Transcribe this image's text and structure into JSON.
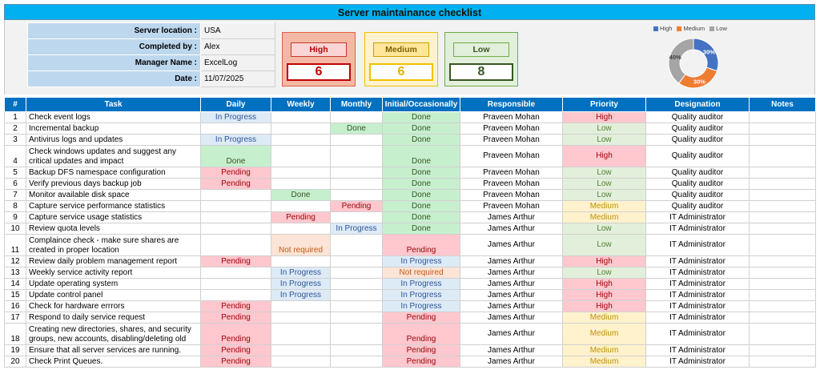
{
  "title": "Server maintainance checklist",
  "info": [
    {
      "label": "Server location :",
      "value": "USA"
    },
    {
      "label": "Completed by :",
      "value": "Alex"
    },
    {
      "label": "Manager Name :",
      "value": "ExcelLog"
    },
    {
      "label": "Date :",
      "value": "11/07/2025"
    }
  ],
  "priority_summary": {
    "high": {
      "label": "High",
      "count": "6"
    },
    "medium": {
      "label": "Medium",
      "count": "6"
    },
    "low": {
      "label": "Low",
      "count": "8"
    }
  },
  "chart_data": {
    "type": "pie",
    "donut": true,
    "categories": [
      "High",
      "Medium",
      "Low"
    ],
    "values": [
      30,
      30,
      40
    ],
    "data_labels": [
      "30%",
      "30%",
      "40%"
    ],
    "colors": [
      "#4472c4",
      "#ed7d31",
      "#a5a5a5"
    ],
    "legend": "top"
  },
  "columns": [
    "#",
    "Task",
    "Daily",
    "Weekly",
    "Monthly",
    "Initial/Occasionally",
    "Responsible",
    "Priority",
    "Designation",
    "Notes"
  ],
  "rows": [
    {
      "num": "1",
      "task": "Check event logs",
      "daily": "In Progress",
      "weekly": "",
      "monthly": "",
      "initial": "Done",
      "responsible": "Praveen Mohan",
      "priority": "High",
      "designation": "Quality auditor",
      "notes": ""
    },
    {
      "num": "2",
      "task": "Incremental backup",
      "daily": "",
      "weekly": "",
      "monthly": "Done",
      "initial": "Done",
      "responsible": "Praveen Mohan",
      "priority": "Low",
      "designation": "Quality auditor",
      "notes": ""
    },
    {
      "num": "3",
      "task": "Antivirus logs and updates",
      "daily": "In Progress",
      "weekly": "",
      "monthly": "",
      "initial": "Done",
      "responsible": "Praveen Mohan",
      "priority": "Low",
      "designation": "Quality auditor",
      "notes": ""
    },
    {
      "num": "4",
      "task": "Check windows updates and suggest any critical updates and impact",
      "daily": "Done",
      "weekly": "",
      "monthly": "",
      "initial": "Done",
      "responsible": "Praveen Mohan",
      "priority": "High",
      "designation": "Quality auditor",
      "notes": "",
      "tall": true
    },
    {
      "num": "5",
      "task": "Backup DFS namespace configuration",
      "daily": "Pending",
      "weekly": "",
      "monthly": "",
      "initial": "Done",
      "responsible": "Praveen Mohan",
      "priority": "Low",
      "designation": "Quality auditor",
      "notes": ""
    },
    {
      "num": "6",
      "task": "Verify previous days backup job",
      "daily": "Pending",
      "weekly": "",
      "monthly": "",
      "initial": "Done",
      "responsible": "Praveen Mohan",
      "priority": "Low",
      "designation": "Quality auditor",
      "notes": ""
    },
    {
      "num": "7",
      "task": "Monitor available disk space",
      "daily": "",
      "weekly": "Done",
      "monthly": "",
      "initial": "Done",
      "responsible": "Praveen Mohan",
      "priority": "Low",
      "designation": "Quality auditor",
      "notes": ""
    },
    {
      "num": "8",
      "task": "Capture service performance statistics",
      "daily": "",
      "weekly": "",
      "monthly": "Pending",
      "initial": "Done",
      "responsible": "Praveen Mohan",
      "priority": "Medium",
      "designation": "Quality auditor",
      "notes": ""
    },
    {
      "num": "9",
      "task": "Capture service usage statistics",
      "daily": "",
      "weekly": "Pending",
      "monthly": "",
      "initial": "Done",
      "responsible": "James Arthur",
      "priority": "Medium",
      "designation": "IT Administrator",
      "notes": ""
    },
    {
      "num": "10",
      "task": "Review quota levels",
      "daily": "",
      "weekly": "",
      "monthly": "In Progress",
      "initial": "Done",
      "responsible": "James Arthur",
      "priority": "Low",
      "designation": "IT Administrator",
      "notes": ""
    },
    {
      "num": "11",
      "task": "Complaince check - make sure shares are created in proper location",
      "daily": "",
      "weekly": "Not required",
      "monthly": "",
      "initial": "Pending",
      "responsible": "James Arthur",
      "priority": "Low",
      "designation": "IT Administrator",
      "notes": "",
      "tall": true
    },
    {
      "num": "12",
      "task": "Review daily problem management report",
      "daily": "Pending",
      "weekly": "",
      "monthly": "",
      "initial": "In Progress",
      "responsible": "James Arthur",
      "priority": "High",
      "designation": "IT Administrator",
      "notes": ""
    },
    {
      "num": "13",
      "task": "Weekly service activity report",
      "daily": "",
      "weekly": "In Progress",
      "monthly": "",
      "initial": "Not required",
      "responsible": "James Arthur",
      "priority": "Low",
      "designation": "IT Administrator",
      "notes": ""
    },
    {
      "num": "14",
      "task": "Update operating system",
      "daily": "",
      "weekly": "In Progress",
      "monthly": "",
      "initial": "In Progress",
      "responsible": "James Arthur",
      "priority": "High",
      "designation": "IT Administrator",
      "notes": ""
    },
    {
      "num": "15",
      "task": "Update control panel",
      "daily": "",
      "weekly": "In Progress",
      "monthly": "",
      "initial": "In Progress",
      "responsible": "James Arthur",
      "priority": "High",
      "designation": "IT Administrator",
      "notes": ""
    },
    {
      "num": "16",
      "task": "Check for hardware errrors",
      "daily": "Pending",
      "weekly": "",
      "monthly": "",
      "initial": "In Progress",
      "responsible": "James Arthur",
      "priority": "High",
      "designation": "IT Administrator",
      "notes": ""
    },
    {
      "num": "17",
      "task": "Respond to daily service request",
      "daily": "Pending",
      "weekly": "",
      "monthly": "",
      "initial": "Pending",
      "responsible": "James Arthur",
      "priority": "Medium",
      "designation": "IT Administrator",
      "notes": ""
    },
    {
      "num": "18",
      "task": "Creating new directories, shares, and security groups, new accounts, disabling/deleting old",
      "daily": "Pending",
      "weekly": "",
      "monthly": "",
      "initial": "Pending",
      "responsible": "James Arthur",
      "priority": "Medium",
      "designation": "IT Administrator",
      "notes": "",
      "tall": true
    },
    {
      "num": "19",
      "task": "Ensure that all server services are running.",
      "daily": "Pending",
      "weekly": "",
      "monthly": "",
      "initial": "Pending",
      "responsible": "James Arthur",
      "priority": "Medium",
      "designation": "IT Administrator",
      "notes": ""
    },
    {
      "num": "20",
      "task": "Check Print Queues.",
      "daily": "Pending",
      "weekly": "",
      "monthly": "",
      "initial": "Pending",
      "responsible": "James Arthur",
      "priority": "Medium",
      "designation": "IT Administrator",
      "notes": ""
    }
  ]
}
